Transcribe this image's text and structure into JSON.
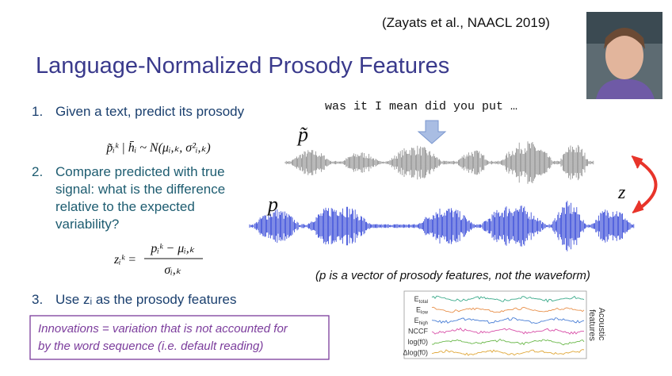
{
  "citation": "(Zayats et al., NAACL 2019)",
  "title": "Language-Normalized Prosody Features",
  "list": [
    {
      "number": "1.",
      "lines": [
        "Given a text, predict its prosody"
      ]
    },
    {
      "number": "2.",
      "lines": [
        "Compare predicted with true",
        "signal: what is the difference",
        "relative to the expected",
        "variability?"
      ]
    },
    {
      "number": "3.",
      "lines": [
        "Use zᵢ as the prosody features"
      ]
    }
  ],
  "formulas": {
    "prediction": "p̃ᵢᵏ | h̄ᵢ ~ N(μᵢ,ₖ, σ²ᵢ,ₖ)",
    "z_lhs": "zᵢᵏ =",
    "z_numerator": "pᵢᵏ − μᵢ,ₖ",
    "z_denominator": "σᵢ,ₖ"
  },
  "note": [
    "Innovations = variation that is not accounted for",
    "by the word sequence (i.e. default reading)"
  ],
  "waveform": {
    "transcript": "was it I mean did you put …",
    "labels": {
      "predicted": "p̃",
      "true": "p",
      "normalized": "z"
    },
    "caption": "(p is a vector of prosody features, not the waveform)"
  },
  "features": {
    "labels": [
      {
        "text": "E",
        "sub": "total"
      },
      {
        "text": "E",
        "sub": "low"
      },
      {
        "text": "E",
        "sub": "high"
      },
      {
        "text": "NCCF"
      },
      {
        "text": "log(f0)"
      },
      {
        "text": "Δlog(f0)"
      }
    ],
    "axis_label": [
      "Acoustic",
      "features"
    ]
  }
}
